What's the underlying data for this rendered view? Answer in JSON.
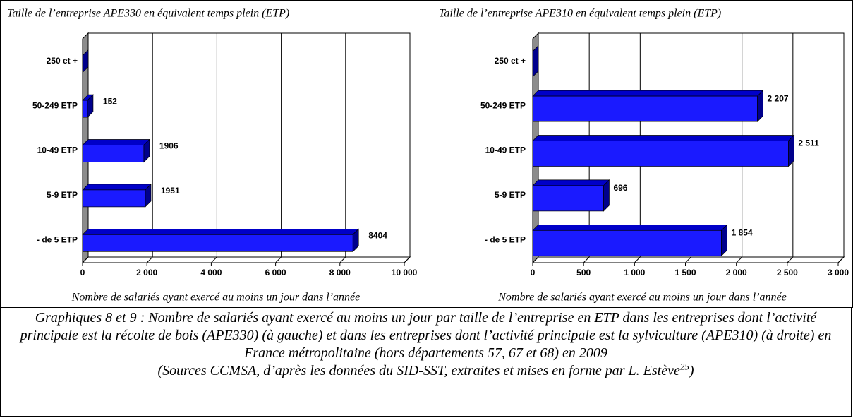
{
  "chart_data": [
    {
      "type": "bar3d",
      "orientation": "horizontal",
      "title": "Taille de l’entreprise APE330 en équivalent temps plein (ETP)",
      "x_label": "Nombre de salariés ayant exercé au moins un jour dans l’année",
      "categories": [
        "250 et +",
        "50-249 ETP",
        "10-49 ETP",
        "5-9 ETP",
        "- de 5 ETP"
      ],
      "values": [
        0,
        152,
        1906,
        1951,
        8404
      ],
      "value_labels": [
        null,
        "152",
        "1906",
        "1951",
        "8404"
      ],
      "color": "#1a1aff",
      "xlim": [
        0,
        10000
      ],
      "xticks": [
        0,
        {
          "value": 2000,
          "label": "2 000"
        },
        {
          "value": 4000,
          "label": "4 000"
        },
        {
          "value": 6000,
          "label": "6 000"
        },
        {
          "value": 8000,
          "label": "8 000"
        },
        {
          "value": 10000,
          "label": "10 000"
        }
      ],
      "grid": true
    },
    {
      "type": "bar3d",
      "orientation": "horizontal",
      "title": "Taille de l’entreprise APE310 en équivalent temps plein (ETP)",
      "x_label": "Nombre de salariés ayant exercé au moins un jour dans l’année",
      "categories": [
        "250 et +",
        "50-249 ETP",
        "10-49 ETP",
        "5-9 ETP",
        "- de 5 ETP"
      ],
      "values": [
        0,
        2207,
        2511,
        696,
        1854
      ],
      "value_labels": [
        null,
        "2 207",
        "2 511",
        "696",
        "1 854"
      ],
      "color": "#1a1aff",
      "xlim": [
        0,
        3000
      ],
      "xticks": [
        0,
        500,
        {
          "value": 1000,
          "label": "1 000"
        },
        {
          "value": 1500,
          "label": "1 500"
        },
        {
          "value": 2000,
          "label": "2 000"
        },
        {
          "value": 2500,
          "label": "2 500"
        },
        {
          "value": 3000,
          "label": "3 000"
        }
      ],
      "grid": true
    }
  ],
  "caption": {
    "text": "Graphiques 8 et 9 : Nombre de salariés ayant exercé au moins un jour par taille de l’entreprise en ETP dans les entreprises dont l’activité principale est la récolte de bois (APE330) (à gauche)  et dans les entreprises dont l’activité principale est la sylviculture (APE310) (à droite) en France métropolitaine (hors départements 57, 67 et 68) en 2009",
    "source": "(Sources CCMSA, d’après les données du SID-SST, extraites et mises en forme par L. Estève",
    "footnote": "25",
    "source_end": ")"
  }
}
